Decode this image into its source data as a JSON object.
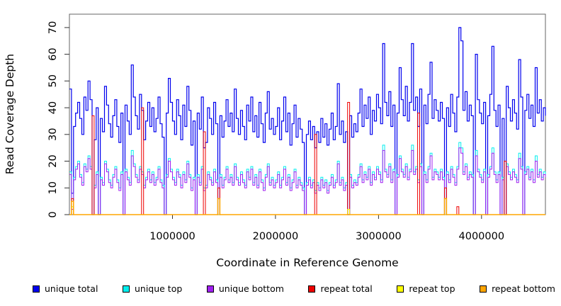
{
  "chart_data": {
    "type": "line",
    "step_interpolation": true,
    "title": "",
    "xlabel": "Coordinate in Reference Genome",
    "ylabel": "Read Coverage Depth",
    "xlim": [
      0,
      4620000
    ],
    "ylim": [
      0,
      75
    ],
    "x_ticks": [
      1000000,
      2000000,
      3000000,
      4000000
    ],
    "x_tick_labels": [
      "1000000",
      "2000000",
      "3000000",
      "4000000"
    ],
    "y_ticks": [
      0,
      10,
      20,
      30,
      40,
      50,
      60,
      70
    ],
    "grid": false,
    "legend_position": "bottom",
    "x_start": 0,
    "x_step": 20000,
    "n_points": 232,
    "series": [
      {
        "name": "unique total",
        "color": "#0000EE",
        "values": [
          47,
          8,
          33,
          38,
          42,
          36,
          30,
          44,
          39,
          50,
          43,
          0,
          28,
          40,
          0,
          36,
          31,
          48,
          41,
          34,
          29,
          37,
          43,
          33,
          27,
          38,
          0,
          41,
          35,
          30,
          56,
          44,
          37,
          32,
          45,
          39,
          28,
          35,
          42,
          33,
          40,
          31,
          36,
          44,
          34,
          29,
          0,
          38,
          51,
          42,
          35,
          30,
          43,
          37,
          28,
          41,
          33,
          48,
          39,
          26,
          35,
          0,
          38,
          32,
          44,
          25,
          27,
          40,
          36,
          30,
          42,
          34,
          0,
          37,
          29,
          35,
          43,
          33,
          38,
          31,
          47,
          36,
          30,
          39,
          33,
          28,
          41,
          35,
          44,
          31,
          37,
          29,
          42,
          34,
          27,
          38,
          46,
          32,
          36,
          30,
          33,
          40,
          28,
          35,
          44,
          31,
          38,
          26,
          34,
          41,
          29,
          36,
          32,
          27,
          0,
          30,
          35,
          28,
          33,
          25,
          31,
          27,
          36,
          29,
          34,
          26,
          32,
          38,
          28,
          33,
          49,
          30,
          35,
          27,
          31,
          0,
          37,
          29,
          34,
          31,
          38,
          47,
          33,
          41,
          36,
          44,
          30,
          39,
          35,
          45,
          40,
          34,
          64,
          42,
          37,
          46,
          33,
          41,
          0,
          38,
          55,
          43,
          37,
          48,
          35,
          42,
          64,
          39,
          44,
          33,
          47,
          0,
          41,
          34,
          45,
          57,
          36,
          43,
          39,
          35,
          42,
          36,
          0,
          40,
          33,
          45,
          38,
          31,
          44,
          70,
          65,
          39,
          46,
          35,
          41,
          37,
          0,
          60,
          43,
          38,
          34,
          42,
          0,
          37,
          45,
          63,
          39,
          33,
          41,
          0,
          36,
          0,
          48,
          40,
          35,
          43,
          38,
          32,
          58,
          44,
          0,
          39,
          45,
          36,
          41,
          33,
          55,
          38,
          43,
          35,
          40,
          37
        ]
      },
      {
        "name": "unique top",
        "color": "#00EEEE",
        "values": [
          16,
          3,
          14,
          18,
          20,
          15,
          12,
          19,
          17,
          22,
          18,
          0,
          11,
          16,
          0,
          14,
          12,
          20,
          17,
          13,
          11,
          15,
          18,
          13,
          10,
          16,
          0,
          17,
          14,
          12,
          24,
          19,
          15,
          13,
          18,
          16,
          11,
          14,
          17,
          13,
          16,
          12,
          14,
          18,
          13,
          11,
          0,
          15,
          21,
          17,
          14,
          12,
          17,
          15,
          11,
          16,
          13,
          20,
          15,
          10,
          14,
          0,
          15,
          12,
          18,
          10,
          11,
          16,
          14,
          12,
          17,
          13,
          0,
          15,
          11,
          14,
          18,
          13,
          15,
          12,
          19,
          14,
          12,
          16,
          13,
          11,
          17,
          14,
          18,
          12,
          15,
          11,
          17,
          13,
          10,
          15,
          19,
          12,
          14,
          11,
          13,
          16,
          11,
          14,
          18,
          12,
          15,
          10,
          13,
          17,
          11,
          14,
          12,
          10,
          0,
          12,
          14,
          11,
          13,
          9,
          12,
          10,
          14,
          11,
          13,
          9,
          12,
          15,
          11,
          13,
          20,
          12,
          14,
          10,
          12,
          0,
          15,
          11,
          13,
          12,
          15,
          19,
          13,
          16,
          14,
          18,
          12,
          16,
          14,
          18,
          16,
          13,
          26,
          17,
          15,
          19,
          13,
          17,
          0,
          15,
          22,
          17,
          15,
          19,
          14,
          17,
          26,
          16,
          18,
          13,
          19,
          0,
          16,
          13,
          18,
          23,
          14,
          17,
          16,
          14,
          17,
          14,
          0,
          16,
          13,
          18,
          15,
          12,
          18,
          27,
          25,
          16,
          19,
          14,
          16,
          15,
          0,
          24,
          17,
          15,
          13,
          17,
          0,
          15,
          18,
          25,
          16,
          13,
          16,
          0,
          14,
          0,
          19,
          16,
          14,
          17,
          15,
          13,
          23,
          18,
          0,
          16,
          18,
          14,
          17,
          13,
          22,
          15,
          17,
          14,
          16,
          15
        ]
      },
      {
        "name": "unique bottom",
        "color": "#A020F0",
        "values": [
          15,
          2,
          13,
          17,
          19,
          14,
          11,
          18,
          16,
          21,
          17,
          0,
          10,
          15,
          0,
          13,
          11,
          19,
          16,
          12,
          10,
          14,
          17,
          12,
          9,
          15,
          0,
          16,
          13,
          11,
          22,
          18,
          14,
          12,
          17,
          15,
          10,
          13,
          16,
          12,
          15,
          11,
          13,
          17,
          12,
          10,
          0,
          14,
          20,
          16,
          13,
          11,
          16,
          14,
          10,
          15,
          12,
          19,
          14,
          9,
          13,
          0,
          14,
          11,
          17,
          9,
          10,
          15,
          13,
          11,
          16,
          12,
          0,
          14,
          10,
          13,
          17,
          12,
          14,
          11,
          18,
          13,
          11,
          15,
          12,
          10,
          16,
          13,
          17,
          11,
          14,
          10,
          16,
          12,
          9,
          14,
          18,
          11,
          13,
          10,
          12,
          15,
          10,
          13,
          17,
          11,
          14,
          9,
          12,
          16,
          10,
          13,
          11,
          9,
          0,
          11,
          13,
          10,
          12,
          8,
          11,
          9,
          13,
          10,
          12,
          8,
          11,
          14,
          10,
          12,
          19,
          11,
          13,
          9,
          11,
          0,
          14,
          10,
          12,
          11,
          14,
          18,
          12,
          15,
          13,
          17,
          11,
          15,
          13,
          17,
          15,
          12,
          24,
          16,
          14,
          18,
          12,
          16,
          0,
          14,
          21,
          16,
          14,
          18,
          13,
          16,
          24,
          15,
          17,
          12,
          18,
          0,
          15,
          12,
          17,
          22,
          13,
          16,
          15,
          13,
          16,
          13,
          0,
          15,
          12,
          17,
          14,
          11,
          17,
          25,
          23,
          15,
          18,
          13,
          15,
          14,
          0,
          22,
          16,
          14,
          12,
          16,
          0,
          14,
          17,
          23,
          15,
          12,
          15,
          0,
          13,
          0,
          18,
          15,
          13,
          16,
          14,
          12,
          21,
          17,
          0,
          15,
          17,
          13,
          16,
          12,
          20,
          14,
          16,
          13,
          15,
          14
        ]
      },
      {
        "name": "repeat total",
        "color": "#EE0000",
        "default": 0,
        "points": [
          [
            1,
            6
          ],
          [
            11,
            37
          ],
          [
            35,
            40
          ],
          [
            65,
            31
          ],
          [
            72,
            10
          ],
          [
            119,
            30
          ],
          [
            135,
            42
          ],
          [
            169,
            38
          ],
          [
            182,
            10
          ],
          [
            188,
            3
          ],
          [
            211,
            20
          ]
        ]
      },
      {
        "name": "repeat top",
        "color": "#FFFF00",
        "default": 0,
        "points": [
          [
            1,
            3
          ],
          [
            135,
            2
          ]
        ]
      },
      {
        "name": "repeat bottom",
        "color": "#FFA500",
        "default": 0,
        "points": [
          [
            1,
            5
          ],
          [
            72,
            6
          ],
          [
            182,
            6
          ]
        ]
      }
    ]
  },
  "legend": {
    "items": [
      {
        "label": "unique total",
        "color": "#0000EE"
      },
      {
        "label": "unique top",
        "color": "#00EEEE"
      },
      {
        "label": "unique bottom",
        "color": "#A020F0"
      },
      {
        "label": "repeat total",
        "color": "#EE0000"
      },
      {
        "label": "repeat top",
        "color": "#FFFF00"
      },
      {
        "label": "repeat bottom",
        "color": "#FFA500"
      }
    ]
  }
}
